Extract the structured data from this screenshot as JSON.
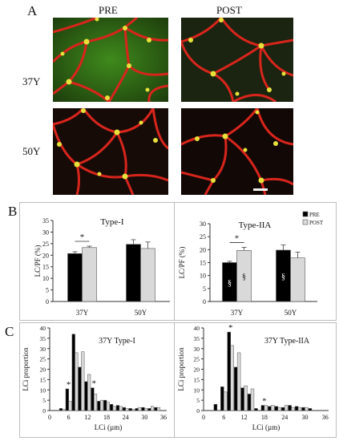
{
  "panels": {
    "a_label": "A",
    "b_label": "B",
    "c_label": "C",
    "col_pre": "PRE",
    "col_post": "POST",
    "row_37": "37Y",
    "row_50": "50Y"
  },
  "micrographs": [
    {
      "name": "micrograph-37y-pre",
      "label": "37Y PRE",
      "tone": "green"
    },
    {
      "name": "micrograph-37y-post",
      "label": "37Y POST",
      "tone": "dark"
    },
    {
      "name": "micrograph-50y-pre",
      "label": "50Y PRE",
      "tone": "dark"
    },
    {
      "name": "micrograph-50y-post",
      "label": "50Y POST",
      "tone": "dark"
    }
  ],
  "colors": {
    "pre_bar": "#000000",
    "post_bar": "#d9d9d9",
    "membrane": "#d8251c",
    "fiber_green": "#3f8a1c",
    "capillary": "#e6e23a"
  },
  "chart_data": [
    {
      "type": "bar",
      "title": "Type-I",
      "ylabel": "LC/PF (%)",
      "categories": [
        "37Y",
        "50Y"
      ],
      "ylim": [
        0,
        35
      ],
      "yticks": [
        0,
        5,
        10,
        15,
        20,
        25,
        30,
        35
      ],
      "series": [
        {
          "name": "PRE",
          "values": [
            20.7,
            24.7
          ],
          "errors": [
            0.8,
            2.0
          ]
        },
        {
          "name": "POST",
          "values": [
            23.3,
            22.9
          ],
          "errors": [
            0.6,
            2.8
          ]
        }
      ],
      "annotations": [
        {
          "text": "*",
          "between": [
            "37Y PRE",
            "37Y POST"
          ]
        }
      ]
    },
    {
      "type": "bar",
      "title": "Type-IIA",
      "ylabel": "LC/PF (%)",
      "categories": [
        "37Y",
        "50Y"
      ],
      "ylim": [
        0,
        30
      ],
      "yticks": [
        0,
        5,
        10,
        15,
        20,
        25,
        30
      ],
      "legend": {
        "position": "top-right",
        "entries": [
          "PRE",
          "POST"
        ]
      },
      "series": [
        {
          "name": "PRE",
          "values": [
            15.0,
            19.8
          ],
          "errors": [
            0.5,
            2.0
          ]
        },
        {
          "name": "POST",
          "values": [
            19.7,
            16.8
          ],
          "errors": [
            1.2,
            2.2
          ]
        }
      ],
      "annotations": [
        {
          "text": "*",
          "between": [
            "37Y PRE",
            "37Y POST"
          ]
        },
        {
          "text": "§",
          "on": "37Y PRE"
        },
        {
          "text": "§",
          "on": "37Y POST"
        },
        {
          "text": "§",
          "on": "50Y PRE"
        }
      ]
    },
    {
      "type": "bar",
      "title": "37Y Type-I",
      "xlabel": "LCi (µm)",
      "ylabel": "LCi proportion",
      "ylim": [
        0,
        40
      ],
      "yticks": [
        0,
        5,
        10,
        15,
        20,
        25,
        30,
        35,
        40
      ],
      "xticks": [
        0,
        6,
        12,
        18,
        24,
        30,
        36
      ],
      "x": [
        4,
        6,
        8,
        10,
        12,
        14,
        16,
        18,
        20,
        22,
        24,
        26,
        28,
        30,
        32,
        34
      ],
      "series": [
        {
          "name": "PRE",
          "values": [
            1,
            10.5,
            37,
            21,
            14,
            11,
            4.5,
            5,
            3,
            2.5,
            1.5,
            1,
            1,
            1.5,
            1,
            1.5
          ]
        },
        {
          "name": "POST",
          "values": [
            0.5,
            4.5,
            28,
            28.5,
            17.5,
            8,
            5,
            4,
            2,
            2,
            1,
            0.5,
            1.5,
            1,
            2,
            1.5
          ]
        }
      ],
      "annotations": [
        {
          "text": "*",
          "at": 6
        },
        {
          "text": "*",
          "at": 14
        }
      ]
    },
    {
      "type": "bar",
      "title": "37Y Type-IIA",
      "xlabel": "LCi (µm)",
      "ylabel": "LCi proportion",
      "ylim": [
        0,
        40
      ],
      "yticks": [
        0,
        5,
        10,
        15,
        20,
        25,
        30,
        35,
        40
      ],
      "xticks": [
        0,
        6,
        12,
        18,
        24,
        30,
        36
      ],
      "x": [
        4,
        6,
        8,
        10,
        12,
        14,
        16,
        18,
        20,
        22,
        24,
        26,
        28,
        30,
        32,
        34
      ],
      "series": [
        {
          "name": "PRE",
          "values": [
            3,
            11.5,
            38,
            21,
            11,
            8,
            1,
            2.5,
            2,
            2,
            1.5,
            2.5,
            2,
            1.5,
            1,
            0
          ]
        },
        {
          "name": "POST",
          "values": [
            0,
            9,
            31.5,
            28,
            12,
            10.5,
            0,
            2.5,
            2.5,
            1.5,
            2.5,
            1.5,
            1.5,
            1.5,
            0,
            0
          ]
        }
      ],
      "annotations": [
        {
          "text": "*",
          "at": 8
        },
        {
          "text": "*",
          "at": 18
        }
      ]
    }
  ]
}
